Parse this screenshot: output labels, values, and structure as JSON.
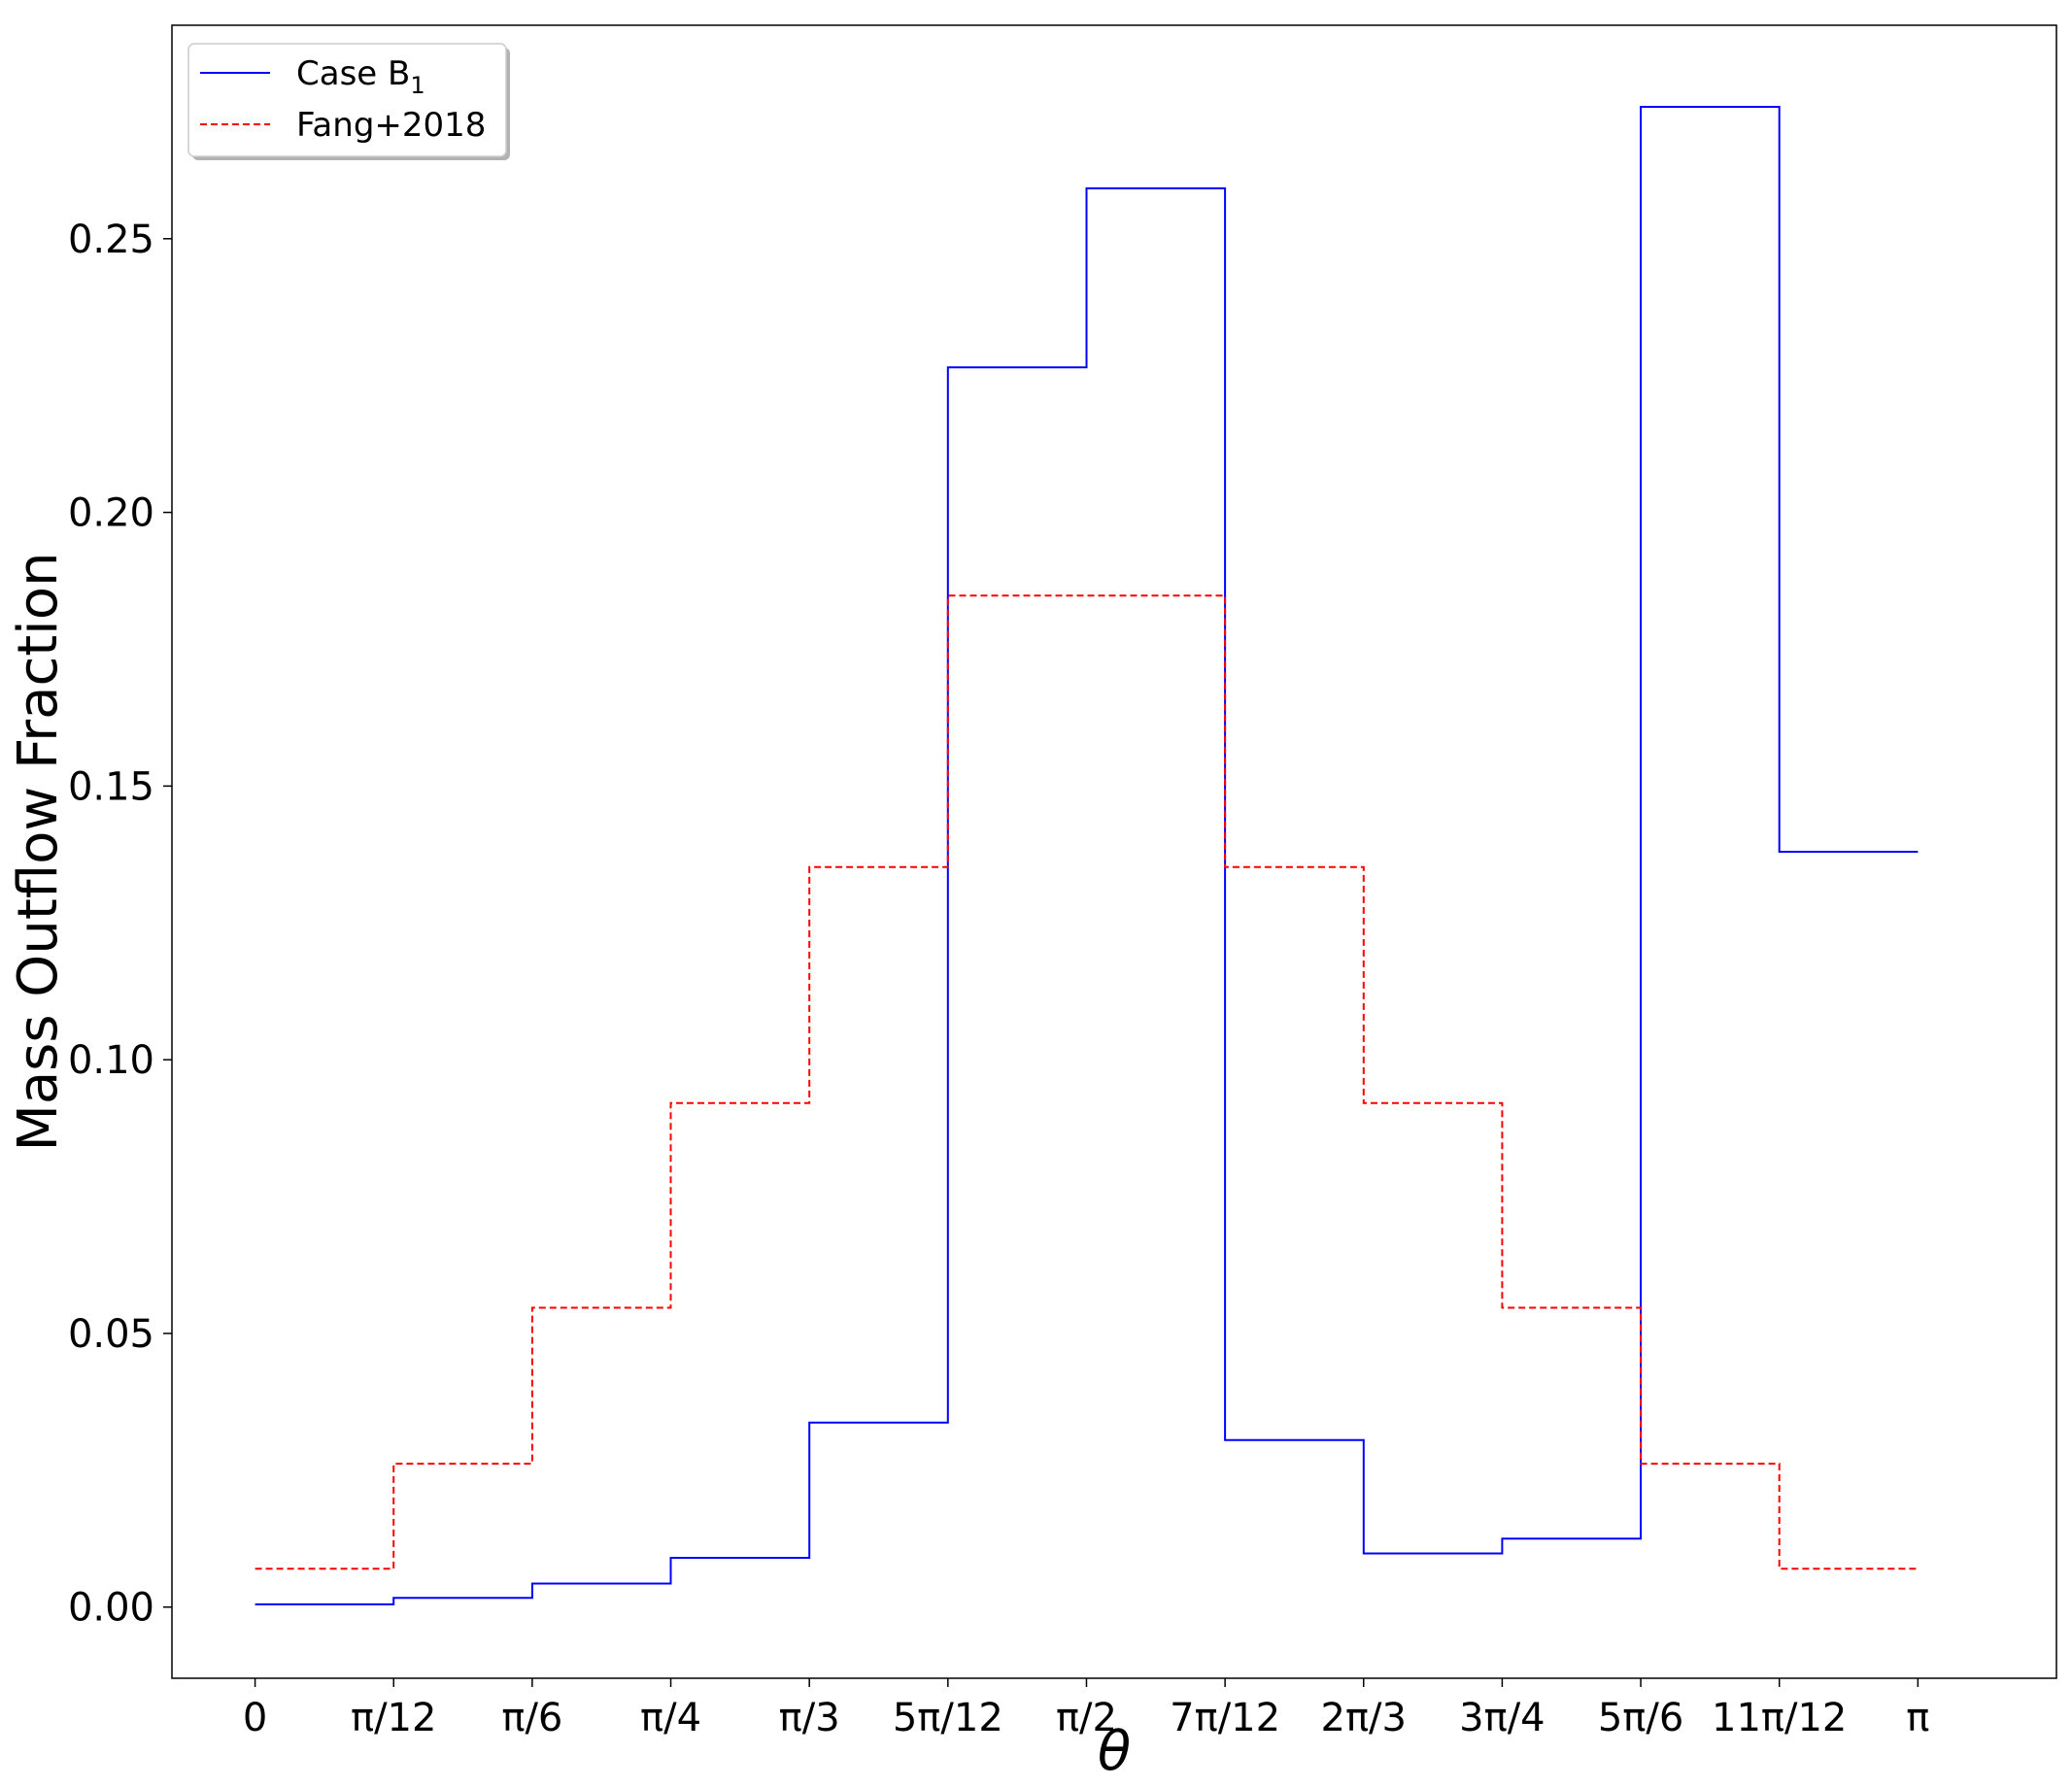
{
  "chart_data": {
    "type": "line",
    "drawstyle": "steps-post",
    "xlabel": "θ",
    "ylabel": "Mass Outflow Fraction",
    "x_ticks": [
      "0",
      "π/12",
      "π/6",
      "π/4",
      "π/3",
      "5π/12",
      "π/2",
      "7π/12",
      "2π/3",
      "3π/4",
      "5π/6",
      "11π/12",
      "π"
    ],
    "y_ticks": [
      "0.00",
      "0.05",
      "0.10",
      "0.15",
      "0.20",
      "0.25"
    ],
    "y_tick_values": [
      0.0,
      0.05,
      0.1,
      0.15,
      0.2,
      0.25
    ],
    "xlim": [
      -0.6,
      13.0
    ],
    "ylim": [
      -0.013,
      0.289
    ],
    "grid": false,
    "legend_position": "top-left",
    "series": [
      {
        "name": "Case B",
        "name_subscript": "1",
        "color": "#0000ff",
        "linestyle": "solid",
        "values": [
          0.0005,
          0.0017,
          0.0043,
          0.009,
          0.0337,
          0.2265,
          0.2592,
          0.0305,
          0.0098,
          0.0125,
          0.2741,
          0.138
        ]
      },
      {
        "name": "Fang+2018",
        "color": "#ff0000",
        "linestyle": "dashed",
        "values": [
          0.007,
          0.0262,
          0.0547,
          0.0921,
          0.1352,
          0.1848,
          0.1848,
          0.1352,
          0.0921,
          0.0547,
          0.0262,
          0.007
        ]
      }
    ]
  }
}
